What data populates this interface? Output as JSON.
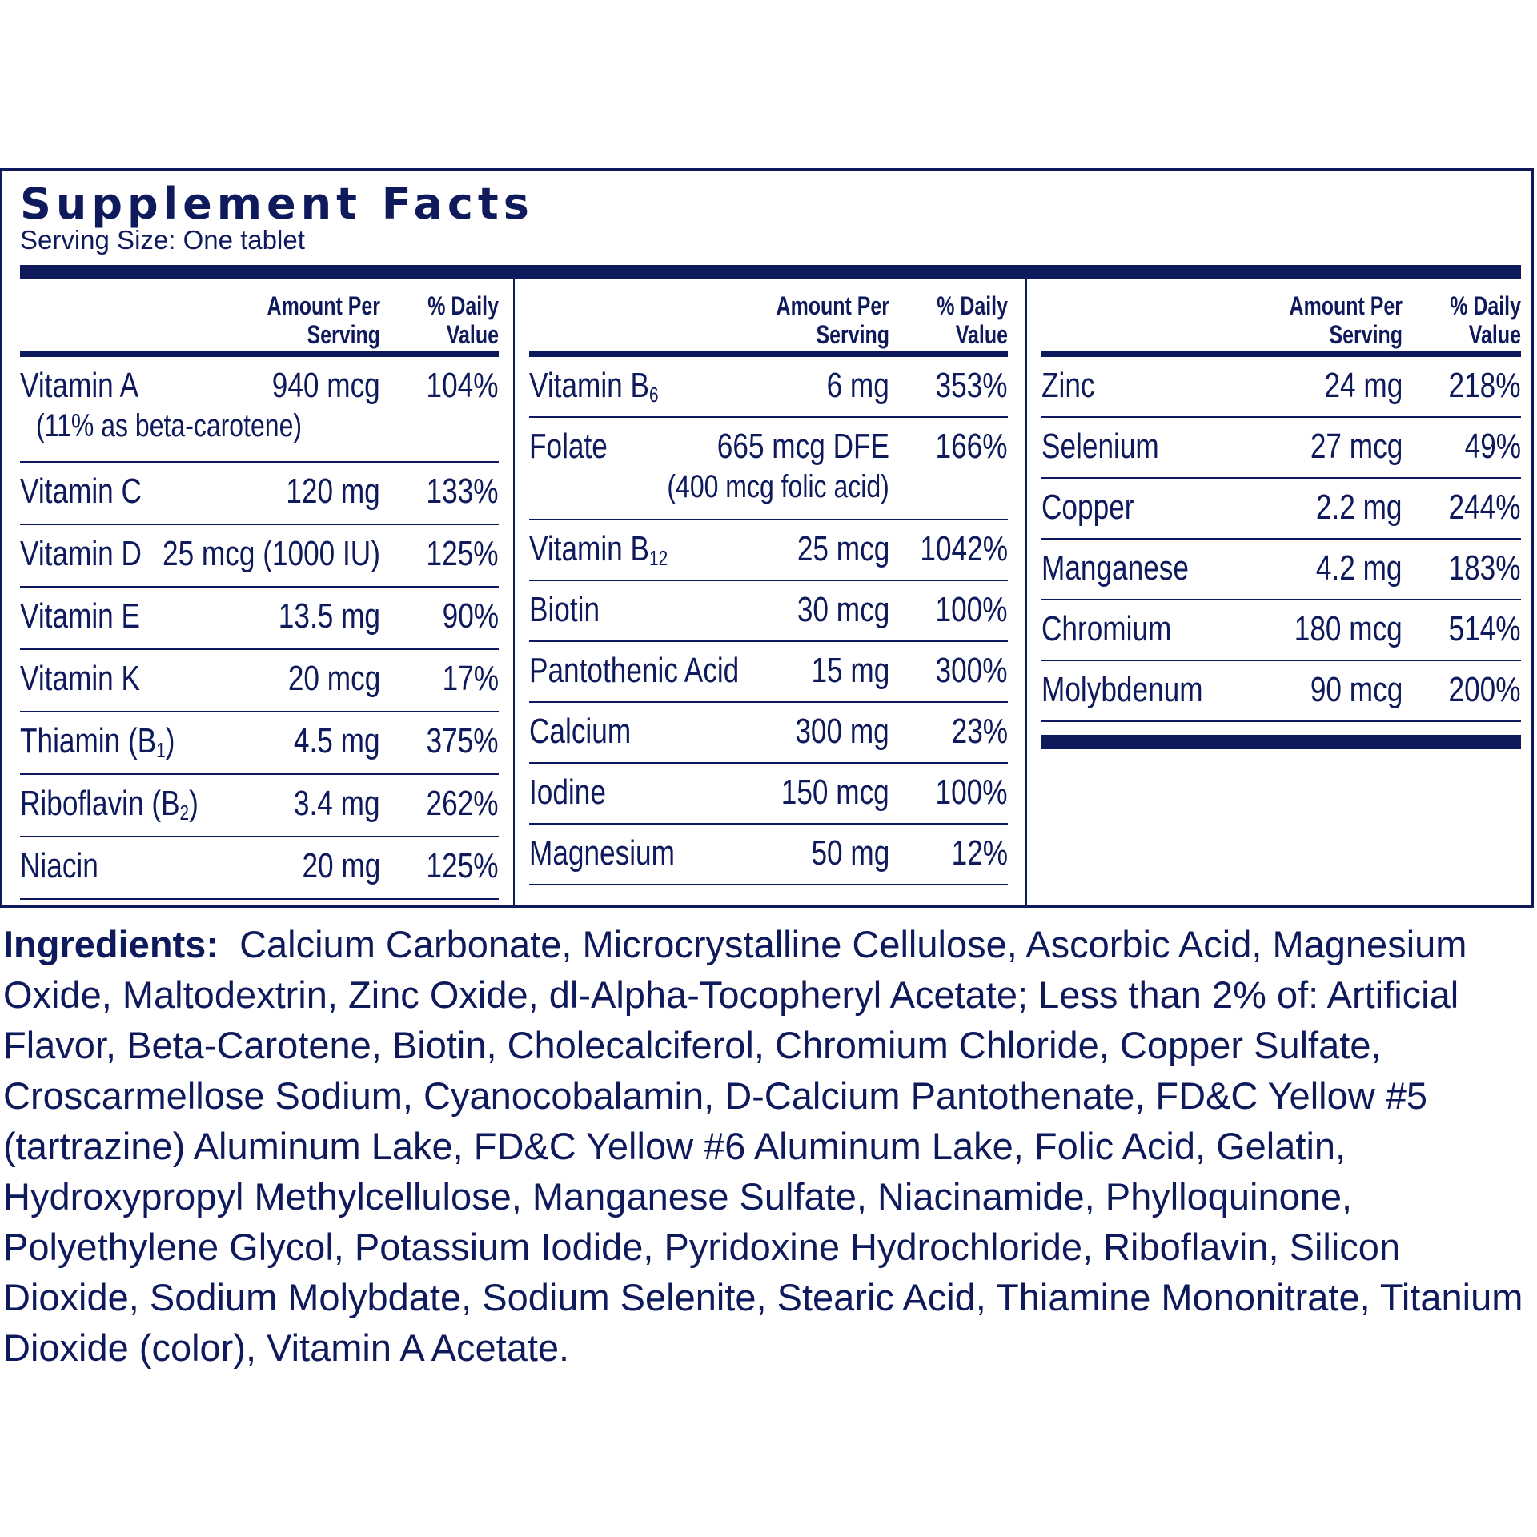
{
  "title": "Supplement Facts",
  "serving_size": "Serving Size: One tablet",
  "headers": {
    "amount": "Amount Per Serving",
    "dv": "% Daily Value"
  },
  "col1": [
    {
      "name": "Vitamin A",
      "amount": "940 mcg",
      "dv": "104%",
      "note": "(11% as beta-carotene)"
    },
    {
      "name": "Vitamin C",
      "amount": "120 mg",
      "dv": "133%"
    },
    {
      "name": "Vitamin D",
      "amount": "25 mcg (1000 IU)",
      "dv": "125%"
    },
    {
      "name": "Vitamin E",
      "amount": "13.5 mg",
      "dv": "90%"
    },
    {
      "name": "Vitamin K",
      "amount": "20 mcg",
      "dv": "17%"
    },
    {
      "name": "Thiamin (B",
      "sub": "1",
      "tail": ")",
      "amount": "4.5 mg",
      "dv": "375%"
    },
    {
      "name": "Riboflavin (B",
      "sub": "2",
      "tail": ")",
      "amount": "3.4 mg",
      "dv": "262%"
    },
    {
      "name": "Niacin",
      "amount": "20 mg",
      "dv": "125%"
    }
  ],
  "col2": [
    {
      "name": "Vitamin B",
      "sub": "6",
      "amount": "6 mg",
      "dv": "353%"
    },
    {
      "name": "Folate",
      "amount": "665 mcg DFE",
      "dv": "166%",
      "note": "(400 mcg folic acid)"
    },
    {
      "name": "Vitamin B",
      "sub": "12",
      "amount": "25 mcg",
      "dv": "1042%"
    },
    {
      "name": "Biotin",
      "amount": "30 mcg",
      "dv": "100%"
    },
    {
      "name": "Pantothenic Acid",
      "amount": "15 mg",
      "dv": "300%"
    },
    {
      "name": "Calcium",
      "amount": "300 mg",
      "dv": "23%"
    },
    {
      "name": "Iodine",
      "amount": "150 mcg",
      "dv": "100%"
    },
    {
      "name": "Magnesium",
      "amount": "50 mg",
      "dv": "12%"
    }
  ],
  "col3": [
    {
      "name": "Zinc",
      "amount": "24 mg",
      "dv": "218%"
    },
    {
      "name": "Selenium",
      "amount": "27 mcg",
      "dv": "49%"
    },
    {
      "name": "Copper",
      "amount": "2.2 mg",
      "dv": "244%"
    },
    {
      "name": "Manganese",
      "amount": "4.2 mg",
      "dv": "183%"
    },
    {
      "name": "Chromium",
      "amount": "180 mcg",
      "dv": "514%"
    },
    {
      "name": "Molybdenum",
      "amount": "90 mcg",
      "dv": "200%"
    }
  ],
  "ingredients": {
    "label": "Ingredients:",
    "text": "Calcium Carbonate, Microcrystalline Cellulose, Ascorbic Acid, Magnesium Oxide, Maltodextrin, Zinc Oxide, dl-Alpha-Tocopheryl Acetate; Less than 2% of: Artificial Flavor, Beta-Carotene, Biotin, Cholecalciferol, Chromium Chloride, Copper Sulfate, Croscarmellose Sodium, Cyanocobalamin, D-Calcium Pantothenate, FD&C Yellow #5 (tartrazine) Aluminum Lake, FD&C Yellow #6 Aluminum Lake, Folic Acid, Gelatin, Hydroxypropyl Methylcellulose, Manganese Sulfate, Niacinamide, Phylloquinone, Polyethylene Glycol, Potassium Iodide, Pyridoxine Hydrochloride, Riboflavin, Silicon Dioxide, Sodium Molybdate, Sodium Selenite, Stearic Acid, Thiamine Mononitrate, Titanium Dioxide (color), Vitamin A Acetate."
  },
  "colors": {
    "ink": "#0e1a5c",
    "background": "#ffffff"
  }
}
